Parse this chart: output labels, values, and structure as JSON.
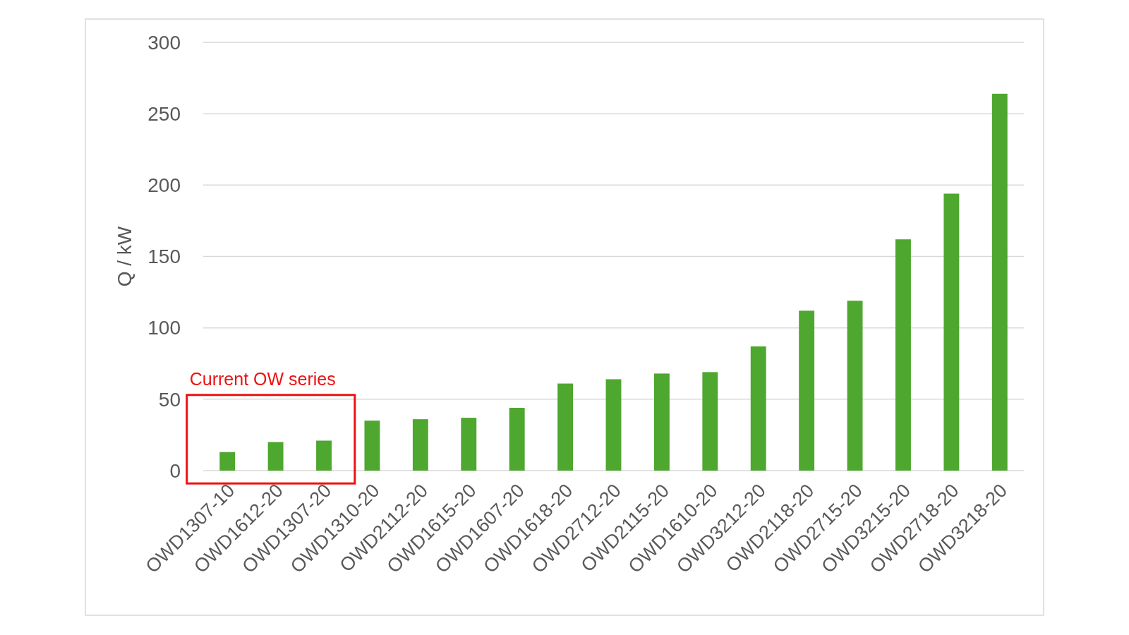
{
  "chart_data": {
    "type": "bar",
    "ylabel": "Q / kW",
    "categories": [
      "OWD1307-10",
      "OWD1612-20",
      "OWD1307-20",
      "OWD1310-20",
      "OWD2112-20",
      "OWD1615-20",
      "OWD1607-20",
      "OWD1618-20",
      "OWD2712-20",
      "OWD2115-20",
      "OWD1610-20",
      "OWD3212-20",
      "OWD2118-20",
      "OWD2715-20",
      "OWD3215-20",
      "OWD2718-20",
      "OWD3218-20"
    ],
    "values": [
      13,
      20,
      21,
      35,
      36,
      37,
      44,
      61,
      64,
      68,
      69,
      87,
      112,
      119,
      162,
      194,
      264
    ],
    "color": "#4ea72e",
    "ylim": [
      0,
      300
    ],
    "yticks": [
      0,
      50,
      100,
      150,
      200,
      250,
      300
    ],
    "grid": "y",
    "annotations": [
      "Current OW series"
    ]
  }
}
